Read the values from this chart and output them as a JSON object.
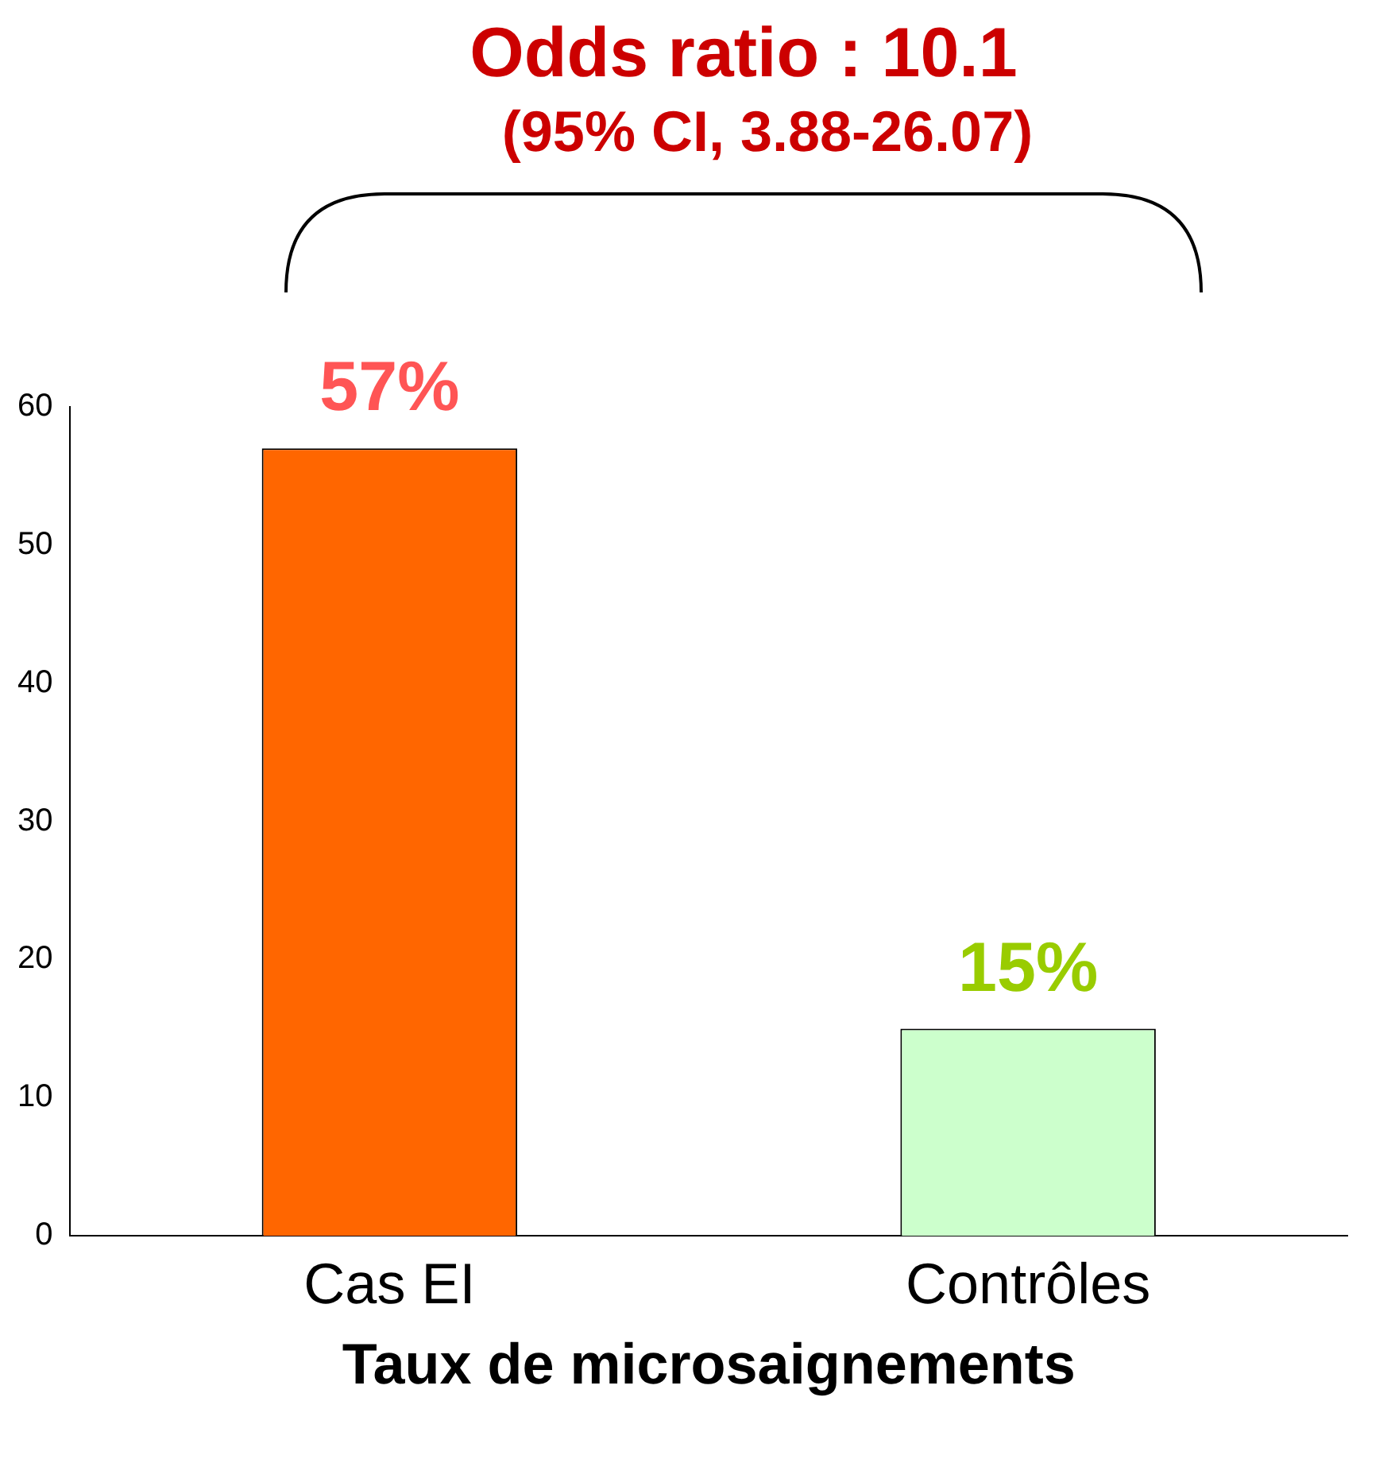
{
  "chart_data": {
    "type": "bar",
    "title": "Odds ratio : 10.1",
    "subtitle": "(95% CI, 3.88-26.07)",
    "xlabel": "Taux de microsaignements",
    "categories": [
      "Cas EI",
      "Contrôles"
    ],
    "values": [
      57,
      15
    ],
    "colors": [
      "#ff6600",
      "#ccffcc"
    ],
    "value_labels": [
      "57%",
      "15%"
    ],
    "ylim": [
      0,
      60
    ],
    "yticks": [
      0,
      10,
      20,
      30,
      40,
      50,
      60
    ],
    "grid": false,
    "legend": false
  }
}
